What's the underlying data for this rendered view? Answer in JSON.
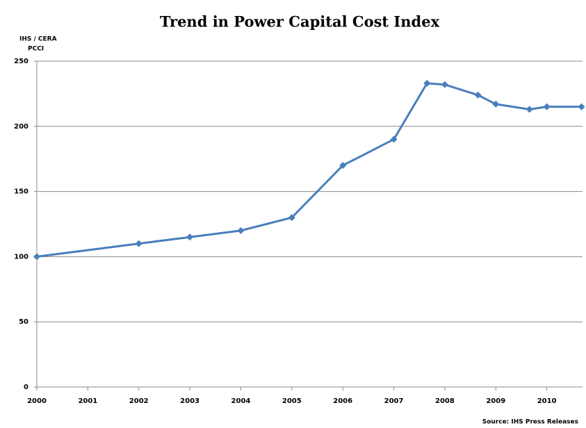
{
  "chart_data": {
    "type": "line",
    "title": "Trend in Power Capital Cost Index",
    "ylabel": [
      "IHS / CERA",
      "PCCI"
    ],
    "source": "Source: IHS Press Releases",
    "x": [
      2000,
      2002,
      2003,
      2004,
      2005,
      2006,
      2007,
      2007.65,
      2008,
      2008.65,
      2009,
      2009.66,
      2010,
      2010.68
    ],
    "values": [
      100,
      110,
      115,
      120,
      130,
      170,
      190,
      233,
      232,
      224,
      217,
      213,
      215,
      215
    ],
    "color": "#4a7ebb",
    "xlim": [
      2000,
      2010.7
    ],
    "xticks": [
      2000,
      2001,
      2002,
      2003,
      2004,
      2005,
      2006,
      2007,
      2008,
      2009,
      2010
    ],
    "ylim": [
      0,
      250
    ],
    "yticks": [
      0,
      50,
      100,
      150,
      200,
      250
    ],
    "grid": true
  }
}
